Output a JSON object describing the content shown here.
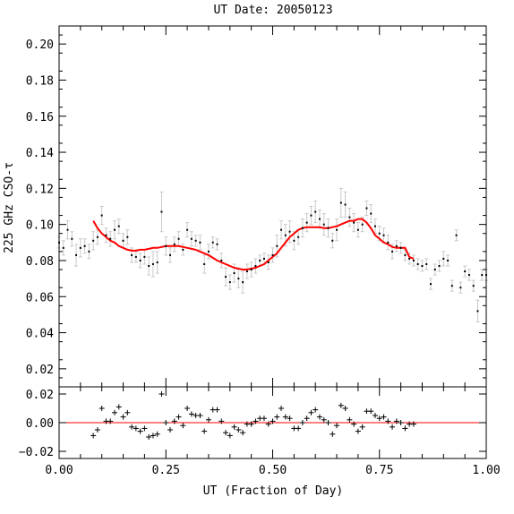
{
  "chart_data": [
    {
      "type": "scatter",
      "title": "UT Date: 20050123",
      "xlabel": "",
      "ylabel": "225 GHz CSO-τ",
      "xlim": [
        0.0,
        1.0
      ],
      "ylim": [
        0.01,
        0.21
      ],
      "xticks": [
        0.0,
        0.25,
        0.5,
        0.75,
        1.0
      ],
      "yticks": [
        0.02,
        0.04,
        0.06,
        0.08,
        0.1,
        0.12,
        0.14,
        0.16,
        0.18,
        0.2
      ],
      "ytick_labels": [
        "0.02",
        "0.04",
        "0.06",
        "0.08",
        "0.10",
        "0.12",
        "0.14",
        "0.16",
        "0.18",
        "0.20"
      ],
      "colors": {
        "points": "#000000",
        "errorbars": "#c8c8c8",
        "fit": "#ff0000"
      },
      "measurements": {
        "x": [
          0.0,
          0.01,
          0.02,
          0.03,
          0.04,
          0.05,
          0.06,
          0.07,
          0.08,
          0.09,
          0.1,
          0.11,
          0.12,
          0.13,
          0.14,
          0.15,
          0.16,
          0.17,
          0.18,
          0.19,
          0.2,
          0.21,
          0.22,
          0.23,
          0.24,
          0.25,
          0.26,
          0.27,
          0.28,
          0.29,
          0.3,
          0.31,
          0.32,
          0.33,
          0.34,
          0.35,
          0.36,
          0.37,
          0.38,
          0.39,
          0.4,
          0.41,
          0.42,
          0.43,
          0.44,
          0.45,
          0.46,
          0.47,
          0.48,
          0.49,
          0.5,
          0.51,
          0.52,
          0.53,
          0.54,
          0.55,
          0.56,
          0.57,
          0.58,
          0.59,
          0.6,
          0.61,
          0.62,
          0.63,
          0.64,
          0.65,
          0.66,
          0.67,
          0.68,
          0.69,
          0.7,
          0.71,
          0.72,
          0.73,
          0.74,
          0.75,
          0.76,
          0.77,
          0.78,
          0.79,
          0.8,
          0.81,
          0.82,
          0.83,
          0.84,
          0.85,
          0.86,
          0.87,
          0.88,
          0.89,
          0.9,
          0.91,
          0.92,
          0.93,
          0.94,
          0.95,
          0.96,
          0.97,
          0.98,
          0.99,
          1.0
        ],
        "y": [
          0.09,
          0.087,
          0.097,
          0.092,
          0.083,
          0.087,
          0.088,
          0.085,
          0.091,
          0.093,
          0.105,
          0.094,
          0.092,
          0.097,
          0.099,
          0.091,
          0.093,
          0.083,
          0.082,
          0.08,
          0.082,
          0.077,
          0.078,
          0.079,
          0.107,
          0.088,
          0.083,
          0.089,
          0.092,
          0.086,
          0.097,
          0.092,
          0.091,
          0.09,
          0.078,
          0.085,
          0.09,
          0.089,
          0.08,
          0.071,
          0.068,
          0.073,
          0.07,
          0.068,
          0.074,
          0.075,
          0.077,
          0.08,
          0.081,
          0.079,
          0.083,
          0.088,
          0.097,
          0.094,
          0.096,
          0.091,
          0.093,
          0.098,
          0.101,
          0.105,
          0.107,
          0.103,
          0.1,
          0.098,
          0.091,
          0.097,
          0.112,
          0.111,
          0.104,
          0.101,
          0.097,
          0.1,
          0.109,
          0.106,
          0.099,
          0.095,
          0.094,
          0.09,
          0.085,
          0.088,
          0.087,
          0.083,
          0.081,
          0.08,
          0.078,
          0.077,
          0.078,
          0.067,
          0.075,
          0.077,
          0.081,
          0.08,
          0.066,
          0.094,
          0.065,
          0.074,
          0.072,
          0.066,
          0.052,
          0.072,
          0.072
        ],
        "err": [
          0.003,
          0.004,
          0.005,
          0.004,
          0.006,
          0.005,
          0.004,
          0.004,
          0.005,
          0.004,
          0.005,
          0.004,
          0.004,
          0.005,
          0.004,
          0.004,
          0.004,
          0.004,
          0.003,
          0.004,
          0.004,
          0.005,
          0.007,
          0.006,
          0.011,
          0.005,
          0.004,
          0.004,
          0.004,
          0.003,
          0.004,
          0.004,
          0.003,
          0.004,
          0.005,
          0.004,
          0.003,
          0.003,
          0.004,
          0.005,
          0.004,
          0.005,
          0.005,
          0.006,
          0.004,
          0.004,
          0.004,
          0.003,
          0.003,
          0.004,
          0.004,
          0.006,
          0.005,
          0.006,
          0.006,
          0.005,
          0.004,
          0.005,
          0.005,
          0.005,
          0.006,
          0.005,
          0.006,
          0.005,
          0.004,
          0.006,
          0.008,
          0.007,
          0.005,
          0.005,
          0.004,
          0.004,
          0.004,
          0.005,
          0.004,
          0.004,
          0.004,
          0.004,
          0.004,
          0.003,
          0.003,
          0.003,
          0.003,
          0.003,
          0.003,
          0.003,
          0.003,
          0.003,
          0.003,
          0.003,
          0.004,
          0.003,
          0.003,
          0.003,
          0.003,
          0.003,
          0.003,
          0.003,
          0.006,
          0.003,
          0.003
        ]
      },
      "fit": {
        "x": [
          0.08,
          0.09,
          0.1,
          0.11,
          0.12,
          0.13,
          0.14,
          0.15,
          0.16,
          0.17,
          0.18,
          0.19,
          0.2,
          0.21,
          0.22,
          0.23,
          0.24,
          0.25,
          0.26,
          0.27,
          0.28,
          0.29,
          0.3,
          0.31,
          0.32,
          0.33,
          0.34,
          0.35,
          0.36,
          0.37,
          0.38,
          0.39,
          0.4,
          0.41,
          0.42,
          0.43,
          0.44,
          0.45,
          0.46,
          0.47,
          0.48,
          0.49,
          0.5,
          0.51,
          0.52,
          0.53,
          0.54,
          0.55,
          0.56,
          0.57,
          0.58,
          0.59,
          0.6,
          0.61,
          0.62,
          0.63,
          0.64,
          0.65,
          0.66,
          0.67,
          0.68,
          0.69,
          0.7,
          0.71,
          0.72,
          0.73,
          0.74,
          0.75,
          0.76,
          0.77,
          0.78,
          0.79,
          0.8,
          0.81,
          0.82,
          0.83
        ],
        "y": [
          0.102,
          0.098,
          0.095,
          0.093,
          0.091,
          0.09,
          0.088,
          0.087,
          0.086,
          0.0855,
          0.0855,
          0.086,
          0.086,
          0.0865,
          0.087,
          0.087,
          0.0875,
          0.088,
          0.088,
          0.088,
          0.088,
          0.0875,
          0.087,
          0.0865,
          0.086,
          0.085,
          0.084,
          0.083,
          0.0815,
          0.08,
          0.079,
          0.078,
          0.077,
          0.076,
          0.0755,
          0.075,
          0.075,
          0.0755,
          0.076,
          0.077,
          0.078,
          0.08,
          0.082,
          0.084,
          0.087,
          0.09,
          0.093,
          0.095,
          0.097,
          0.098,
          0.0985,
          0.0985,
          0.0985,
          0.0985,
          0.098,
          0.098,
          0.0985,
          0.099,
          0.1,
          0.101,
          0.102,
          0.102,
          0.103,
          0.103,
          0.101,
          0.098,
          0.094,
          0.092,
          0.09,
          0.089,
          0.0875,
          0.087,
          0.087,
          0.087,
          0.082,
          0.081
        ]
      }
    },
    {
      "type": "scatter",
      "title": "",
      "xlabel": "UT (Fraction of Day)",
      "ylabel": "",
      "xlim": [
        0.0,
        1.0
      ],
      "ylim": [
        -0.025,
        0.025
      ],
      "xticks": [
        0.0,
        0.25,
        0.5,
        0.75,
        1.0
      ],
      "xtick_labels": [
        "0.00",
        "0.25",
        "0.50",
        "0.75",
        "1.00"
      ],
      "yticks": [
        -0.02,
        0.0,
        0.02
      ],
      "ytick_labels": [
        "−0.02",
        "0.00",
        "0.02"
      ],
      "zero_line_color": "#ff0000",
      "residuals": {
        "x": [
          0.08,
          0.09,
          0.1,
          0.11,
          0.12,
          0.13,
          0.14,
          0.15,
          0.16,
          0.17,
          0.18,
          0.19,
          0.2,
          0.21,
          0.22,
          0.23,
          0.24,
          0.25,
          0.26,
          0.27,
          0.28,
          0.29,
          0.3,
          0.31,
          0.32,
          0.33,
          0.34,
          0.35,
          0.36,
          0.37,
          0.38,
          0.39,
          0.4,
          0.41,
          0.42,
          0.43,
          0.44,
          0.45,
          0.46,
          0.47,
          0.48,
          0.49,
          0.5,
          0.51,
          0.52,
          0.53,
          0.54,
          0.55,
          0.56,
          0.57,
          0.58,
          0.59,
          0.6,
          0.61,
          0.62,
          0.63,
          0.64,
          0.65,
          0.66,
          0.67,
          0.68,
          0.69,
          0.7,
          0.71,
          0.72,
          0.73,
          0.74,
          0.75,
          0.76,
          0.77,
          0.78,
          0.79,
          0.8,
          0.81,
          0.82,
          0.83
        ],
        "y": [
          -0.009,
          -0.005,
          0.01,
          0.001,
          0.001,
          0.007,
          0.011,
          0.004,
          0.007,
          -0.003,
          -0.004,
          -0.006,
          -0.004,
          -0.01,
          -0.009,
          -0.008,
          0.02,
          0.0,
          -0.005,
          0.001,
          0.004,
          -0.002,
          0.01,
          0.006,
          0.005,
          0.005,
          -0.006,
          0.002,
          0.009,
          0.009,
          0.001,
          -0.007,
          -0.009,
          -0.003,
          -0.005,
          -0.007,
          -0.001,
          -0.001,
          0.001,
          0.003,
          0.003,
          -0.001,
          0.001,
          0.004,
          0.01,
          0.004,
          0.003,
          -0.004,
          -0.004,
          0.0,
          0.003,
          0.007,
          0.009,
          0.004,
          0.002,
          0.0,
          -0.008,
          -0.002,
          0.012,
          0.01,
          0.002,
          -0.001,
          -0.006,
          -0.003,
          0.008,
          0.008,
          0.005,
          0.003,
          0.004,
          0.001,
          -0.003,
          0.001,
          0.0,
          -0.004,
          -0.001,
          -0.001
        ]
      }
    }
  ]
}
